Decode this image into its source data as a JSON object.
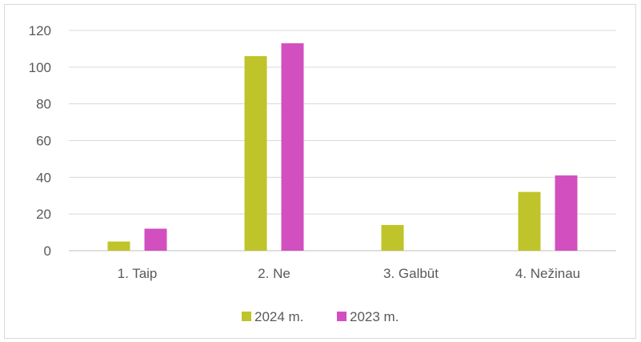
{
  "chart_data": {
    "type": "bar",
    "categories": [
      "1. Taip",
      "2. Ne",
      "3. Galbūt",
      "4. Nežinau"
    ],
    "series": [
      {
        "name": "2024 m.",
        "color": "#bfc42a",
        "values": [
          5,
          106,
          14,
          32
        ]
      },
      {
        "name": "2023 m.",
        "color": "#d24fc0",
        "values": [
          12,
          113,
          0,
          41
        ]
      }
    ],
    "yticks": [
      "0",
      "20",
      "40",
      "60",
      "80",
      "100",
      "120"
    ],
    "ylim": [
      0,
      120
    ],
    "grid": true,
    "legend": "bottom"
  }
}
